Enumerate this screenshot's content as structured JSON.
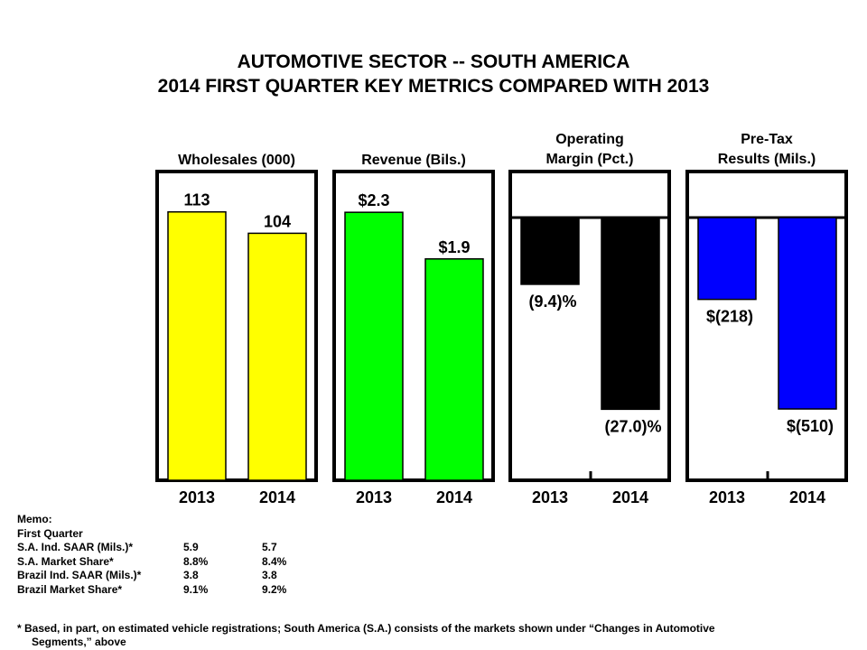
{
  "title": {
    "line1": "AUTOMOTIVE SECTOR -- SOUTH AMERICA",
    "line2": "2014 FIRST QUARTER KEY METRICS COMPARED WITH 2013"
  },
  "chart_data": [
    {
      "type": "bar",
      "title": [
        "Wholesales (000)"
      ],
      "categories": [
        "2013",
        "2014"
      ],
      "values": [
        113,
        104
      ],
      "labels": [
        "113",
        "104"
      ],
      "color": "#FFFF00",
      "ylim": [
        0,
        130
      ]
    },
    {
      "type": "bar",
      "title": [
        "Revenue (Bils.)"
      ],
      "categories": [
        "2013",
        "2014"
      ],
      "values": [
        2.3,
        1.9
      ],
      "labels": [
        "$2.3",
        "$1.9"
      ],
      "color": "#00FF00",
      "ylim": [
        0,
        2.65
      ]
    },
    {
      "type": "bar",
      "title": [
        "Operating",
        "Margin (Pct.)"
      ],
      "categories": [
        "2013",
        "2014"
      ],
      "values": [
        -9.4,
        -27.0
      ],
      "labels": [
        "(9.4)%",
        "(27.0)%"
      ],
      "color": "#000000",
      "ylim": [
        -37,
        0
      ]
    },
    {
      "type": "bar",
      "title": [
        "Pre-Tax",
        "Results (Mils.)"
      ],
      "categories": [
        "2013",
        "2014"
      ],
      "values": [
        -218,
        -510
      ],
      "labels": [
        "$(218)",
        "$(510)"
      ],
      "color": "#0000FF",
      "ylim": [
        -700,
        0
      ]
    }
  ],
  "memo": {
    "heading": "Memo:",
    "subheading": "First Quarter",
    "rows": [
      {
        "label": "S.A. Ind. SAAR (Mils.)*",
        "v2013": "5.9",
        "v2014": "5.7"
      },
      {
        "label": "S.A. Market Share*",
        "v2013": "8.8%",
        "v2014": "8.4%"
      },
      {
        "label": "Brazil Ind. SAAR (Mils.)*",
        "v2013": "3.8",
        "v2014": "3.8"
      },
      {
        "label": "Brazil Market Share*",
        "v2013": "9.1%",
        "v2014": "9.2%"
      }
    ]
  },
  "footnote": {
    "line1": "* Based, in part, on estimated vehicle registrations;  South America (S.A.) consists  of the markets shown under “Changes in Automotive",
    "line2": "Segments,” above"
  }
}
